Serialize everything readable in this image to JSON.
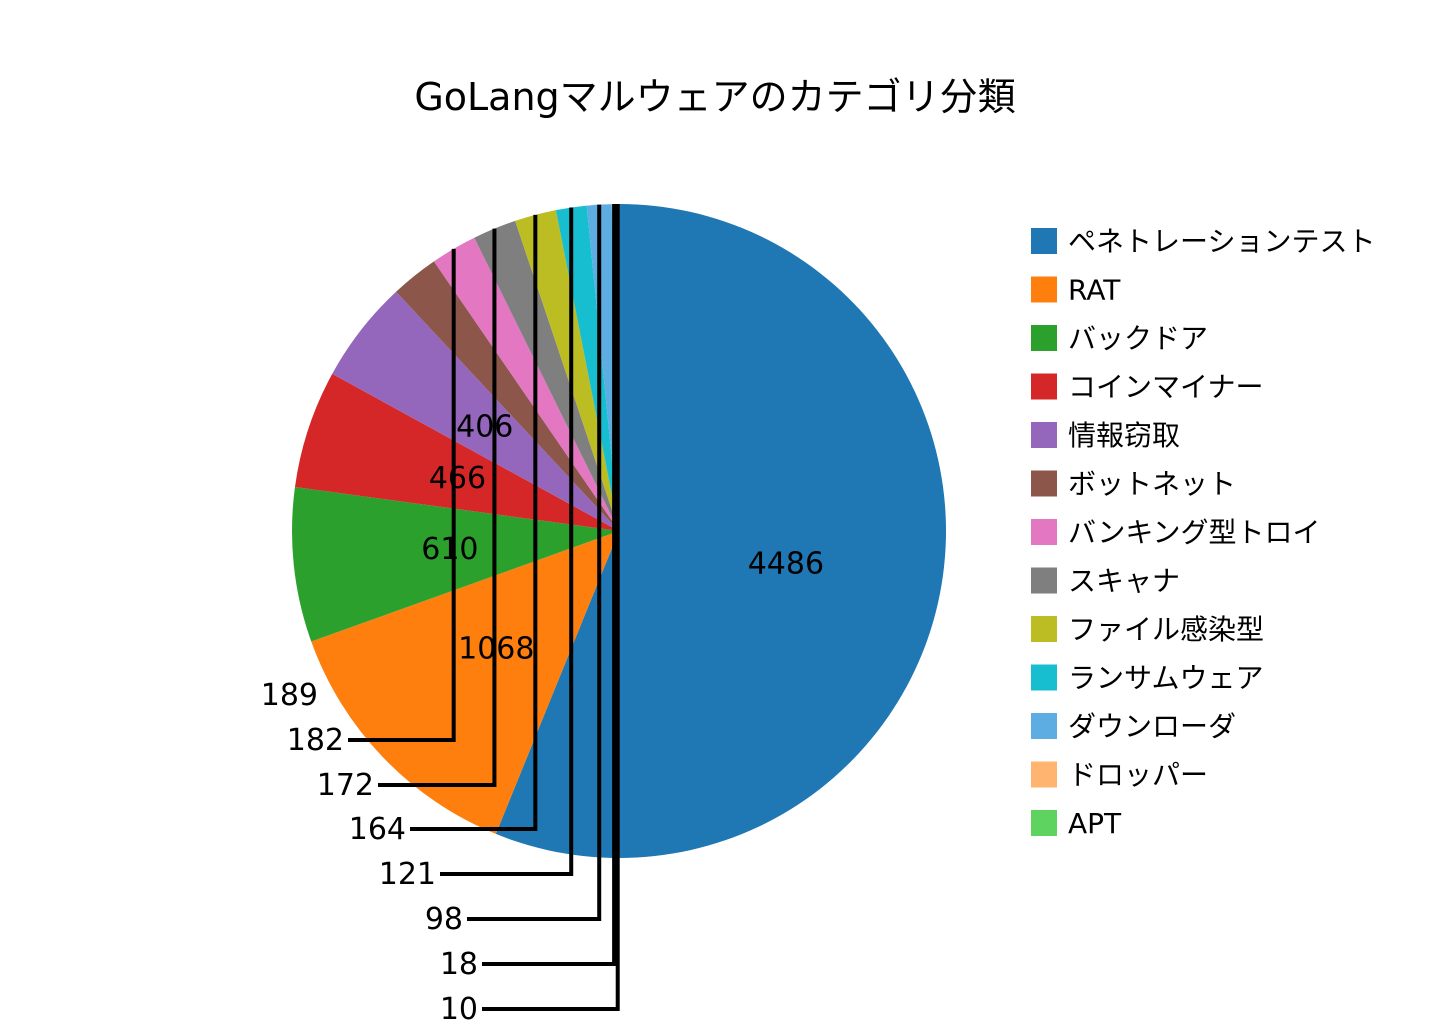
{
  "chart_data": {
    "type": "pie",
    "title": "GoLangマルウェアのカテゴリ分類",
    "legend_position": "right",
    "start_angle": "top",
    "direction": "clockwise",
    "slices": [
      {
        "label": "ペネトレーションテスト",
        "value": 4486,
        "color": "#1f77b4"
      },
      {
        "label": "RAT",
        "value": 1068,
        "color": "#ff7f0e"
      },
      {
        "label": "バックドア",
        "value": 610,
        "color": "#2ca02c"
      },
      {
        "label": "コインマイナー",
        "value": 466,
        "color": "#d62728"
      },
      {
        "label": "情報窃取",
        "value": 406,
        "color": "#9467bd"
      },
      {
        "label": "ボットネット",
        "value": 189,
        "color": "#8c564b"
      },
      {
        "label": "バンキング型トロイ",
        "value": 182,
        "color": "#e377c2"
      },
      {
        "label": "スキャナ",
        "value": 172,
        "color": "#7f7f7f"
      },
      {
        "label": "ファイル感染型",
        "value": 164,
        "color": "#bcbd22"
      },
      {
        "label": "ランサムウェア",
        "value": 121,
        "color": "#17becf"
      },
      {
        "label": "ダウンローダ",
        "value": 98,
        "color": "#5dade2"
      },
      {
        "label": "ドロッパー",
        "value": 18,
        "color": "#ffb570"
      },
      {
        "label": "APT",
        "value": 10,
        "color": "#5fd35f"
      }
    ]
  }
}
